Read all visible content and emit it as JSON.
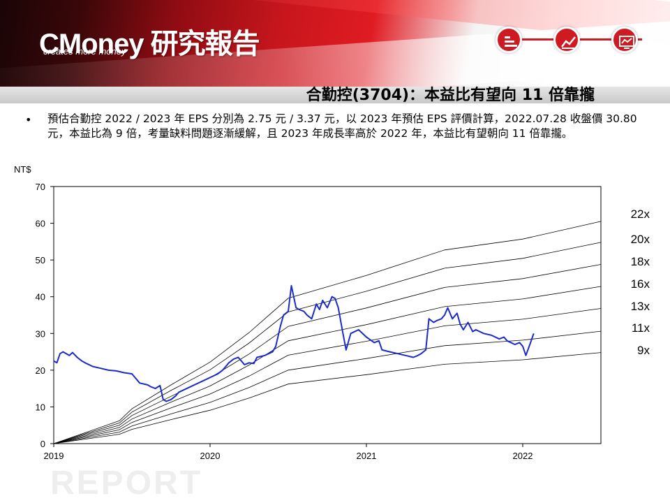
{
  "header": {
    "logo_text": "CMoney 研究報告",
    "tagline": "creates more money",
    "nav_icons": [
      "report-icon",
      "line-chart-icon",
      "monitor-chart-icon"
    ],
    "accent_color": "#d01a22"
  },
  "slide": {
    "title": "合勤控(3704)：本益比有望向 11 倍靠攏",
    "bullet_symbol": "•",
    "bullet_text": "預估合勤控 2022 / 2023 年 EPS 分別為 2.75 元 / 3.37 元，以 2023 年預估 EPS 評價計算，2022.07.28 收盤價 30.80 元，本益比為 9 倍，考量缺料問題逐漸緩解，且 2023 年成長率高於 2022 年，本益比有望朝向 11 倍靠攏。"
  },
  "watermark": "REPORT",
  "chart_data": {
    "type": "line",
    "ylabel": "NT$",
    "ylim": [
      0,
      70
    ],
    "yticks": [
      0,
      10,
      20,
      30,
      40,
      50,
      60,
      70
    ],
    "xlim": [
      2019.0,
      2022.5
    ],
    "xticks": [
      2019,
      2020,
      2021,
      2022
    ],
    "xtick_labels": [
      "2019",
      "2020",
      "2021",
      "2022"
    ],
    "grid": false,
    "price_color": "#1a2bcc",
    "band_color": "#000000",
    "band_labels": [
      "22x",
      "20x",
      "18x",
      "16x",
      "13x",
      "11x",
      "9x"
    ],
    "band_end_values": [
      60.5,
      54.8,
      48.8,
      42.8,
      36.8,
      30.6,
      24.8
    ],
    "band_base_x": [
      2019.0,
      2019.42,
      2019.5,
      2019.75,
      2020.0,
      2020.25,
      2020.5,
      2021.0,
      2021.5,
      2022.0,
      2022.5
    ],
    "band_base_y": [
      0,
      4.4,
      6.7,
      11.3,
      15.7,
      21.4,
      28.0,
      32.4,
      37.3,
      39.4,
      42.8
    ],
    "series": [
      {
        "x": [
          2019.0,
          2019.02,
          2019.04,
          2019.06,
          2019.08,
          2019.1,
          2019.12,
          2019.15,
          2019.18,
          2019.2,
          2019.25,
          2019.3,
          2019.35,
          2019.4,
          2019.45,
          2019.5,
          2019.55,
          2019.6,
          2019.62,
          2019.65,
          2019.68,
          2019.7,
          2019.72,
          2019.75,
          2019.78,
          2019.8,
          2019.85,
          2019.9,
          2019.95,
          2020.0,
          2020.05,
          2020.08,
          2020.1,
          2020.12,
          2020.15,
          2020.18,
          2020.2,
          2020.22,
          2020.25,
          2020.28,
          2020.3,
          2020.35,
          2020.4,
          2020.42,
          2020.45,
          2020.47,
          2020.5,
          2020.52,
          2020.55,
          2020.57,
          2020.6,
          2020.62,
          2020.65,
          2020.68,
          2020.7,
          2020.72,
          2020.75,
          2020.78,
          2020.8,
          2020.82,
          2020.85,
          2020.87,
          2020.9,
          2020.95,
          2021.0,
          2021.05,
          2021.08,
          2021.1,
          2021.15,
          2021.2,
          2021.25,
          2021.3,
          2021.33,
          2021.35,
          2021.38,
          2021.4,
          2021.43,
          2021.45,
          2021.48,
          2021.5,
          2021.52,
          2021.55,
          2021.58,
          2021.6,
          2021.62,
          2021.65,
          2021.68,
          2021.7,
          2021.75,
          2021.8,
          2021.85,
          2021.88,
          2021.9,
          2021.95,
          2021.98,
          2022.0,
          2022.02,
          2022.05,
          2022.07
        ],
        "y": [
          22.5,
          22.0,
          24.5,
          25.0,
          24.5,
          24.0,
          24.8,
          23.5,
          22.5,
          22.0,
          21.0,
          20.5,
          20.0,
          19.8,
          19.3,
          19.0,
          16.5,
          16.0,
          15.5,
          15.0,
          15.8,
          12.0,
          11.5,
          12.0,
          13.0,
          14.0,
          15.0,
          16.0,
          17.0,
          18.0,
          19.0,
          20.0,
          21.0,
          22.0,
          23.0,
          23.5,
          22.5,
          21.5,
          22.0,
          21.8,
          23.5,
          24.0,
          25.0,
          26.5,
          32.0,
          35.0,
          36.0,
          43.0,
          37.0,
          36.5,
          36.0,
          35.0,
          34.0,
          38.0,
          36.5,
          39.0,
          37.0,
          40.0,
          39.5,
          37.0,
          30.0,
          25.5,
          30.0,
          31.0,
          29.0,
          27.5,
          28.0,
          25.5,
          25.0,
          24.5,
          24.0,
          23.5,
          24.0,
          24.5,
          25.5,
          34.0,
          33.0,
          33.5,
          34.0,
          35.0,
          37.0,
          34.0,
          35.5,
          32.5,
          31.0,
          33.0,
          30.5,
          31.0,
          30.0,
          29.5,
          28.5,
          29.0,
          28.0,
          27.0,
          27.5,
          26.5,
          24.0,
          27.5,
          30.0
        ]
      }
    ]
  }
}
